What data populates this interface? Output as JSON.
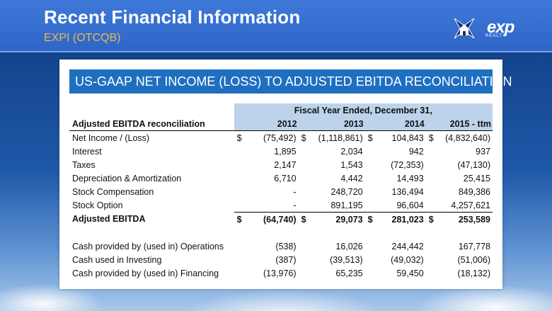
{
  "header": {
    "title": "Recent Financial Information",
    "subtitle": "EXPI (OTCQB)"
  },
  "logo": {
    "text": "exp",
    "tagline": "REALTY"
  },
  "banner": "US-GAAP NET INCOME (LOSS) TO ADJUSTED EBITDA RECONCILIATION",
  "table": {
    "group_header": "Fiscal Year Ended, December 31,",
    "first_col_header": "Adjusted EBITDA reconciliation",
    "years": [
      "2012",
      "2013",
      "2014",
      "2015 - ttm"
    ],
    "net_income": {
      "label": "Net Income / (Loss)",
      "cells": [
        {
          "cur": "$",
          "val": "(75,492)"
        },
        {
          "cur": "$",
          "val": "(1,118,861)"
        },
        {
          "cur": "$",
          "val": "104,843"
        },
        {
          "cur": "$",
          "val": "(4,832,640)"
        }
      ]
    },
    "rows": [
      {
        "label": "Interest",
        "values": [
          "1,895",
          "2,034",
          "942",
          "937"
        ]
      },
      {
        "label": "Taxes",
        "values": [
          "2,147",
          "1,543",
          "(72,353)",
          "(47,130)"
        ]
      },
      {
        "label": "Depreciation & Amortization",
        "values": [
          "6,710",
          "4,442",
          "14,493",
          "25,415"
        ]
      },
      {
        "label": "Stock Compensation",
        "values": [
          "-",
          "248,720",
          "136,494",
          "849,386"
        ]
      },
      {
        "label": "Stock Option",
        "values": [
          "-",
          "891,195",
          "96,604",
          "4,257,621"
        ]
      }
    ],
    "adjusted_ebitda": {
      "label": "Adjusted EBITDA",
      "cells": [
        {
          "cur": "$",
          "val": "(64,740)"
        },
        {
          "cur": "$",
          "val": "29,073"
        },
        {
          "cur": "$",
          "val": "281,023"
        },
        {
          "cur": "$",
          "val": "253,589"
        }
      ]
    },
    "cash_rows": [
      {
        "label": "Cash provided by (used in) Operations",
        "values": [
          "(538)",
          "16,026",
          "244,442",
          "167,778"
        ]
      },
      {
        "label": "Cash used in Investing",
        "values": [
          "(387)",
          "(39,513)",
          "(49,032)",
          "(51,006)"
        ]
      },
      {
        "label": "Cash provided by (used in) Financing",
        "values": [
          "(13,976)",
          "65,235",
          "59,450",
          "(18,132)"
        ]
      }
    ]
  },
  "colors": {
    "header_bg": "#2e66c8",
    "subtitle": "#f0b84a",
    "banner_bg": "#1f6fc1",
    "column_shade": "#bdd3ec"
  }
}
